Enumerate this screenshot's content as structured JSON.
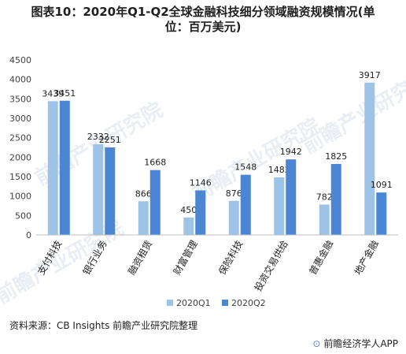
{
  "title_line1": "图表10：2020年Q1-Q2全球金融科技细分领域融资规模情况(单",
  "title_line2": "位：百万美元)",
  "source_text": "资料来源：CB Insights  前瞻产业研究院整理",
  "app_text": "前瞻经济学人APP",
  "watermark_text": "前瞻产业研究院",
  "colors": {
    "q1": "#9dc3e6",
    "q2": "#4a86d4",
    "axis": "#bfbfbf",
    "text": "#404040"
  },
  "chart_data": {
    "type": "bar",
    "title": "图表10：2020年Q1-Q2全球金融科技细分领域融资规模情况(单位：百万美元)",
    "categories": [
      "支付科技",
      "银行业务",
      "融资租赁",
      "财富管理",
      "保险科技",
      "投资交易供给",
      "普惠金融",
      "地产金融"
    ],
    "series": [
      {
        "name": "2020Q1",
        "values": [
          3439,
          2332,
          866,
          450,
          876,
          1482,
          782,
          3917
        ]
      },
      {
        "name": "2020Q2",
        "values": [
          3451,
          2251,
          1668,
          1146,
          1548,
          1942,
          1825,
          1091
        ]
      }
    ],
    "yticks": [
      0,
      500,
      1000,
      1500,
      2000,
      2500,
      3000,
      3500,
      4000,
      4500
    ],
    "ylim": [
      0,
      4500
    ],
    "grid": false,
    "legend": "bottom-center"
  }
}
